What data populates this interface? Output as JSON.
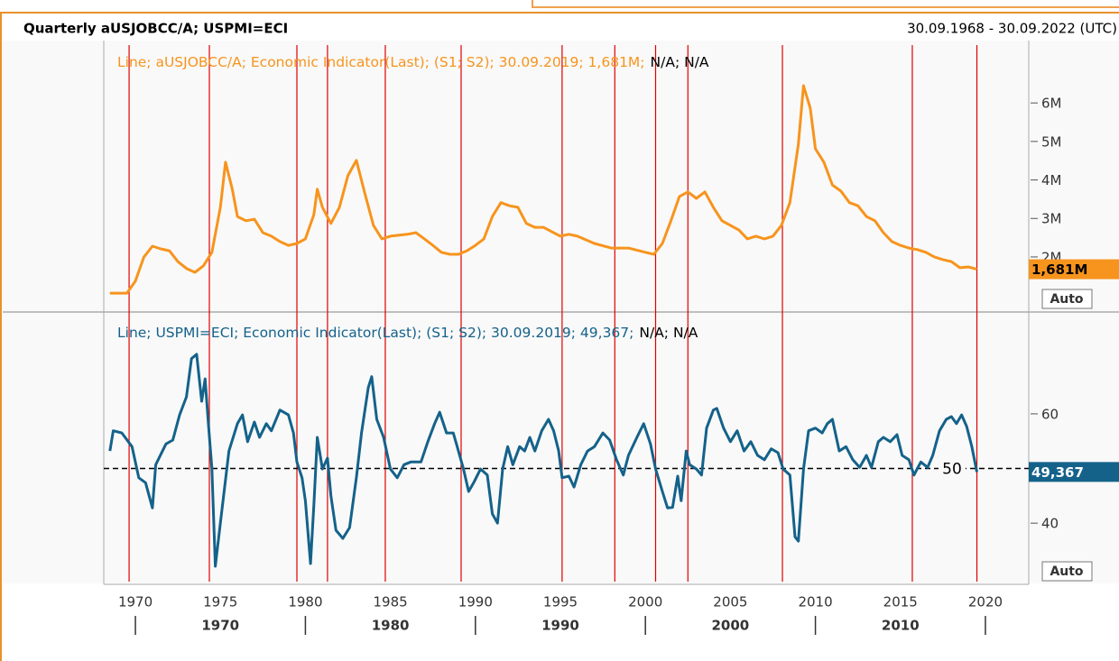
{
  "header": {
    "title": "Quarterly aUSJOBCC/A; USPMI=ECI",
    "range": "30.09.1968 - 30.09.2022 (UTC)"
  },
  "x_axis": {
    "xlim": [
      1968.14,
      2022.55
    ],
    "xticks": [
      1970,
      1975,
      1980,
      1985,
      1990,
      1995,
      2000,
      2005,
      2010,
      2015,
      2020
    ],
    "decades": [
      1970,
      1980,
      1990,
      2000,
      2010
    ],
    "vlines": [
      1969.63,
      1974.35,
      1979.5,
      1981.3,
      1984.7,
      1989.16,
      1995.1,
      1998.2,
      2000.6,
      2002.5,
      2008.06,
      2015.7,
      2019.5
    ],
    "vline_color": "#e00000"
  },
  "chart_data": [
    {
      "type": "line",
      "legend_note": "N/A; N/A",
      "last_label": "1,681M",
      "scale_mode": "Auto",
      "ylim": [
        0.64,
        7.55
      ],
      "yticks": [
        {
          "value": 2,
          "label": "2M"
        },
        {
          "value": 3,
          "label": "3M"
        },
        {
          "value": 4,
          "label": "4M"
        },
        {
          "value": 5,
          "label": "5M"
        },
        {
          "value": 6,
          "label": "6M"
        }
      ],
      "series": [
        {
          "name": "Line; aUSJOBCC/A; Economic Indicator(Last); (S1; S2); 30.09.2019; 1,681M;",
          "color": "#f7941d",
          "x": [
            1968.5,
            1969.5,
            1970.0,
            1970.5,
            1971.0,
            1971.5,
            1972.0,
            1972.5,
            1973.0,
            1973.5,
            1974.0,
            1974.5,
            1975.0,
            1975.3,
            1975.7,
            1976.0,
            1976.5,
            1977.0,
            1977.5,
            1978.0,
            1978.5,
            1979.0,
            1979.5,
            1980.0,
            1980.5,
            1980.7,
            1981.0,
            1981.5,
            1982.0,
            1982.5,
            1983.0,
            1983.5,
            1984.0,
            1984.5,
            1985.0,
            1986.0,
            1986.5,
            1987.0,
            1987.5,
            1988.0,
            1988.5,
            1989.0,
            1989.5,
            1990.0,
            1990.5,
            1991.0,
            1991.5,
            1992.0,
            1992.5,
            1993.0,
            1993.5,
            1994.0,
            1995.0,
            1995.5,
            1996.0,
            1997.0,
            1998.0,
            1999.0,
            2000.0,
            2000.5,
            2001.0,
            2001.5,
            2002.0,
            2002.5,
            2003.0,
            2003.5,
            2004.0,
            2004.5,
            2005.0,
            2005.5,
            2006.0,
            2006.5,
            2007.0,
            2007.5,
            2008.0,
            2008.5,
            2009.0,
            2009.3,
            2009.7,
            2010.0,
            2010.5,
            2011.0,
            2011.5,
            2012.0,
            2012.5,
            2013.0,
            2013.5,
            2014.0,
            2014.5,
            2015.0,
            2015.5,
            2016.0,
            2016.5,
            2017.0,
            2017.5,
            2018.0,
            2018.5,
            2019.0,
            2019.5
          ],
          "values": [
            1.06,
            1.06,
            1.37,
            2.0,
            2.28,
            2.21,
            2.16,
            1.88,
            1.7,
            1.6,
            1.77,
            2.12,
            3.29,
            4.46,
            3.76,
            3.05,
            2.94,
            2.98,
            2.63,
            2.54,
            2.4,
            2.3,
            2.35,
            2.47,
            3.1,
            3.76,
            3.29,
            2.87,
            3.29,
            4.11,
            4.51,
            3.64,
            2.82,
            2.47,
            2.54,
            2.59,
            2.63,
            2.47,
            2.3,
            2.12,
            2.07,
            2.07,
            2.16,
            2.3,
            2.47,
            3.05,
            3.41,
            3.33,
            3.29,
            2.87,
            2.77,
            2.77,
            2.54,
            2.59,
            2.54,
            2.35,
            2.23,
            2.23,
            2.12,
            2.07,
            2.35,
            2.94,
            3.57,
            3.69,
            3.52,
            3.69,
            3.29,
            2.94,
            2.82,
            2.7,
            2.47,
            2.54,
            2.47,
            2.54,
            2.82,
            3.41,
            4.93,
            6.45,
            5.86,
            4.81,
            4.46,
            3.87,
            3.71,
            3.41,
            3.33,
            3.05,
            2.94,
            2.63,
            2.4,
            2.3,
            2.23,
            2.19,
            2.12,
            2.0,
            1.93,
            1.88,
            1.72,
            1.74,
            1.681
          ]
        }
      ]
    },
    {
      "type": "line",
      "legend_note": "N/A; N/A",
      "last_label": "49,367",
      "scale_mode": "Auto",
      "ylim": [
        29.3,
        78.3
      ],
      "yticks": [
        40,
        60
      ],
      "reference_line": 50,
      "series": [
        {
          "name": "Line; USPMI=ECI; Economic Indicator(Last); (S1; S2); 30.09.2019; 49,367;",
          "color": "#14628a",
          "x": [
            1968.5,
            1968.7,
            1969.2,
            1969.8,
            1970.2,
            1970.6,
            1971.0,
            1971.2,
            1971.8,
            1972.2,
            1972.6,
            1973.0,
            1973.3,
            1973.6,
            1973.9,
            1974.1,
            1974.3,
            1974.5,
            1974.7,
            1975.0,
            1975.5,
            1976.0,
            1976.3,
            1976.6,
            1977.0,
            1977.3,
            1977.7,
            1978.0,
            1978.5,
            1979.0,
            1979.3,
            1979.5,
            1979.8,
            1980.0,
            1980.3,
            1980.5,
            1980.7,
            1981.0,
            1981.3,
            1981.5,
            1981.8,
            1982.2,
            1982.6,
            1983.0,
            1983.3,
            1983.7,
            1983.9,
            1984.2,
            1984.6,
            1985.0,
            1985.4,
            1985.8,
            1986.2,
            1986.8,
            1987.2,
            1987.6,
            1987.9,
            1988.3,
            1988.7,
            1989.0,
            1989.3,
            1989.6,
            1989.9,
            1990.3,
            1990.7,
            1991.0,
            1991.3,
            1991.6,
            1991.9,
            1992.2,
            1992.6,
            1992.9,
            1993.2,
            1993.5,
            1993.9,
            1994.3,
            1994.6,
            1994.9,
            1995.1,
            1995.5,
            1995.8,
            1996.2,
            1996.6,
            1997.0,
            1997.5,
            1997.9,
            1998.3,
            1998.7,
            1999.0,
            1999.5,
            1999.9,
            2000.3,
            2000.6,
            2001.0,
            2001.3,
            2001.6,
            2001.9,
            2002.1,
            2002.4,
            2002.6,
            2003.0,
            2003.3,
            2003.6,
            2004.0,
            2004.2,
            2004.6,
            2005.0,
            2005.4,
            2005.8,
            2006.2,
            2006.6,
            2007.0,
            2007.4,
            2007.8,
            2008.1,
            2008.5,
            2008.8,
            2009.0,
            2009.3,
            2009.6,
            2010.0,
            2010.4,
            2010.7,
            2011.0,
            2011.4,
            2011.8,
            2012.2,
            2012.6,
            2013.0,
            2013.3,
            2013.7,
            2014.0,
            2014.4,
            2014.8,
            2015.1,
            2015.5,
            2015.8,
            2016.2,
            2016.6,
            2016.9,
            2017.3,
            2017.7,
            2018.0,
            2018.3,
            2018.6,
            2018.9,
            2019.2,
            2019.5
          ],
          "values": [
            53.2,
            56.9,
            56.5,
            54.0,
            48.3,
            47.4,
            42.8,
            50.7,
            54.5,
            55.2,
            59.8,
            63.1,
            70.1,
            70.9,
            62.3,
            66.4,
            58.0,
            50.0,
            32.1,
            40.0,
            53.2,
            58.2,
            59.8,
            54.9,
            58.5,
            55.7,
            58.2,
            56.9,
            60.7,
            59.8,
            56.5,
            51.2,
            48.3,
            44.1,
            32.6,
            43.3,
            55.7,
            49.9,
            51.9,
            45.0,
            38.7,
            37.2,
            39.2,
            48.3,
            56.5,
            64.8,
            66.8,
            59.0,
            55.7,
            49.9,
            48.3,
            50.7,
            51.2,
            51.2,
            54.9,
            58.2,
            60.3,
            56.5,
            56.5,
            53.2,
            49.9,
            45.8,
            47.4,
            49.9,
            48.8,
            41.7,
            40.0,
            49.9,
            54.0,
            50.7,
            54.0,
            53.2,
            55.7,
            53.2,
            56.9,
            59.0,
            56.9,
            53.2,
            48.3,
            48.6,
            46.6,
            50.7,
            53.2,
            54.0,
            56.5,
            55.2,
            51.6,
            48.8,
            52.4,
            55.7,
            58.2,
            54.5,
            49.9,
            45.8,
            42.8,
            42.9,
            48.6,
            44.1,
            53.2,
            50.7,
            49.9,
            48.8,
            57.4,
            60.7,
            61.0,
            57.4,
            54.9,
            56.9,
            53.2,
            54.9,
            52.4,
            51.6,
            53.6,
            52.9,
            49.9,
            48.8,
            37.5,
            36.7,
            49.9,
            56.9,
            57.4,
            56.5,
            58.2,
            59.0,
            53.2,
            54.0,
            51.6,
            50.2,
            52.4,
            50.2,
            54.9,
            55.7,
            54.9,
            56.2,
            52.4,
            51.6,
            48.8,
            51.2,
            50.2,
            52.4,
            56.9,
            59.0,
            59.5,
            58.2,
            59.8,
            57.7,
            54.0,
            49.367
          ]
        }
      ]
    }
  ]
}
